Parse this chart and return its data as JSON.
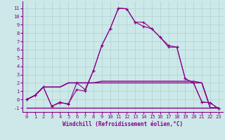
{
  "bg_color": "#cce8e8",
  "line_color": "#880088",
  "grid_color": "#aacccc",
  "hours": [
    0,
    1,
    2,
    3,
    4,
    5,
    6,
    7,
    8,
    9,
    10,
    11,
    12,
    13,
    14,
    15,
    16,
    17,
    18,
    19,
    20,
    21,
    22,
    23
  ],
  "series1": [
    0.0,
    0.5,
    1.5,
    -0.8,
    -0.4,
    -0.5,
    1.2,
    1.0,
    3.5,
    6.5,
    8.5,
    11.0,
    10.9,
    9.3,
    9.3,
    8.5,
    7.5,
    6.3,
    6.3,
    2.5,
    2.0,
    -0.3,
    -0.4,
    -1.1
  ],
  "series2": [
    0.0,
    0.5,
    1.5,
    -0.8,
    -0.3,
    -0.6,
    2.0,
    1.2,
    3.5,
    6.5,
    8.5,
    11.0,
    10.9,
    9.3,
    8.8,
    8.5,
    7.5,
    6.5,
    6.3,
    2.5,
    2.0,
    -0.3,
    -0.4,
    -1.1
  ],
  "series3": [
    0.0,
    0.5,
    1.5,
    1.5,
    1.5,
    2.0,
    2.0,
    2.0,
    2.0,
    2.2,
    2.2,
    2.2,
    2.2,
    2.2,
    2.2,
    2.2,
    2.2,
    2.2,
    2.2,
    2.2,
    2.2,
    2.0,
    -1.0,
    -1.0
  ],
  "series4": [
    0.0,
    0.5,
    1.5,
    1.5,
    1.5,
    2.0,
    2.0,
    2.0,
    2.0,
    2.0,
    2.0,
    2.0,
    2.0,
    2.0,
    2.0,
    2.0,
    2.0,
    2.0,
    2.0,
    2.0,
    2.0,
    2.0,
    -1.0,
    -1.0
  ],
  "series5": [
    -1.0,
    -1.0,
    -1.0,
    -1.0,
    -1.0,
    -1.0,
    -1.0,
    -1.0,
    -1.0,
    -1.0,
    -1.0,
    -1.0,
    -1.0,
    -1.0,
    -1.0,
    -1.0,
    -1.0,
    -1.0,
    -1.0,
    -1.0,
    -1.0,
    -1.0,
    -1.0,
    -1.0
  ],
  "ylim": [
    -1.5,
    11.8
  ],
  "xlim": [
    -0.5,
    23.5
  ],
  "yticks": [
    -1,
    0,
    1,
    2,
    3,
    4,
    5,
    6,
    7,
    8,
    9,
    10,
    11
  ],
  "xticks": [
    0,
    1,
    2,
    3,
    4,
    5,
    6,
    7,
    8,
    9,
    10,
    11,
    12,
    13,
    14,
    15,
    16,
    17,
    18,
    19,
    20,
    21,
    22,
    23
  ],
  "xlabel": "Windchill (Refroidissement éolien,°C)",
  "tick_fontsize": 5.0,
  "xlabel_fontsize": 5.5,
  "linewidth": 0.8,
  "markersize": 3
}
